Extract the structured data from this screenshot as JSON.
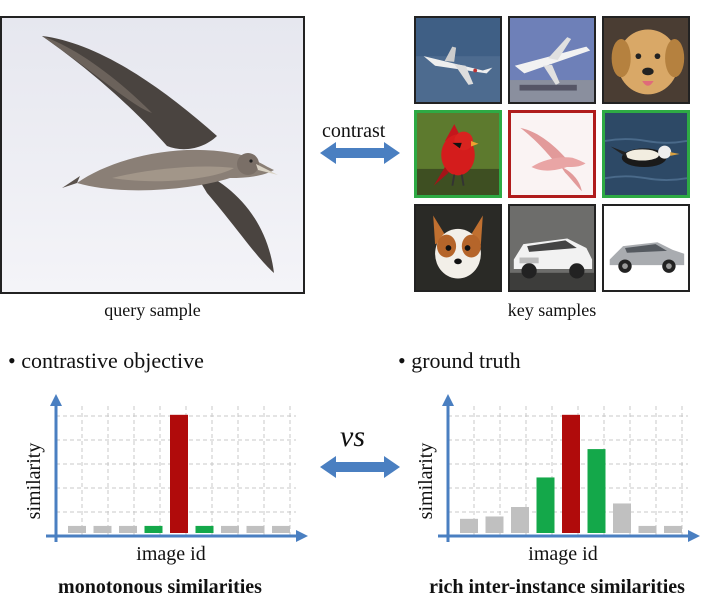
{
  "query": {
    "caption": "query sample"
  },
  "keys": {
    "caption": "key samples",
    "tiles": [
      {
        "icon": "airplane-icon",
        "border": "#222222"
      },
      {
        "icon": "airplane-icon",
        "border": "#222222"
      },
      {
        "icon": "dog-icon",
        "border": "#222222"
      },
      {
        "icon": "cardinal-bird-icon",
        "border": "#2eaa44"
      },
      {
        "icon": "albatross-silhouette-icon",
        "border": "#b01c1c"
      },
      {
        "icon": "duck-icon",
        "border": "#2eaa44"
      },
      {
        "icon": "dog-icon",
        "border": "#222222"
      },
      {
        "icon": "car-icon",
        "border": "#222222"
      },
      {
        "icon": "car-icon",
        "border": "#222222"
      }
    ]
  },
  "contrast_label": "contrast",
  "vs_label": "vs",
  "left_panel": {
    "bullet": "• contrastive objective",
    "title": "monotonous similarities"
  },
  "right_panel": {
    "bullet": "• ground truth",
    "title": "rich inter-instance similarities"
  },
  "colors": {
    "arrow": "#4a7fc1",
    "gray": "#c0c0c0",
    "green": "#14a84a",
    "red": "#b00b0b"
  },
  "chart_data": [
    {
      "type": "bar",
      "xlabel": "image id",
      "ylabel": "similarity",
      "values": [
        0.06,
        0.06,
        0.06,
        0.06,
        1.0,
        0.06,
        0.06,
        0.06,
        0.06
      ],
      "colors": [
        "gray",
        "gray",
        "gray",
        "green",
        "red",
        "green",
        "gray",
        "gray",
        "gray"
      ],
      "ylim": [
        0,
        1.1
      ],
      "grid": true
    },
    {
      "type": "bar",
      "xlabel": "image id",
      "ylabel": "similarity",
      "values": [
        0.12,
        0.14,
        0.22,
        0.47,
        1.0,
        0.71,
        0.25,
        0.06,
        0.06
      ],
      "colors": [
        "gray",
        "gray",
        "gray",
        "green",
        "red",
        "green",
        "gray",
        "gray",
        "gray"
      ],
      "ylim": [
        0,
        1.1
      ],
      "grid": true
    }
  ]
}
